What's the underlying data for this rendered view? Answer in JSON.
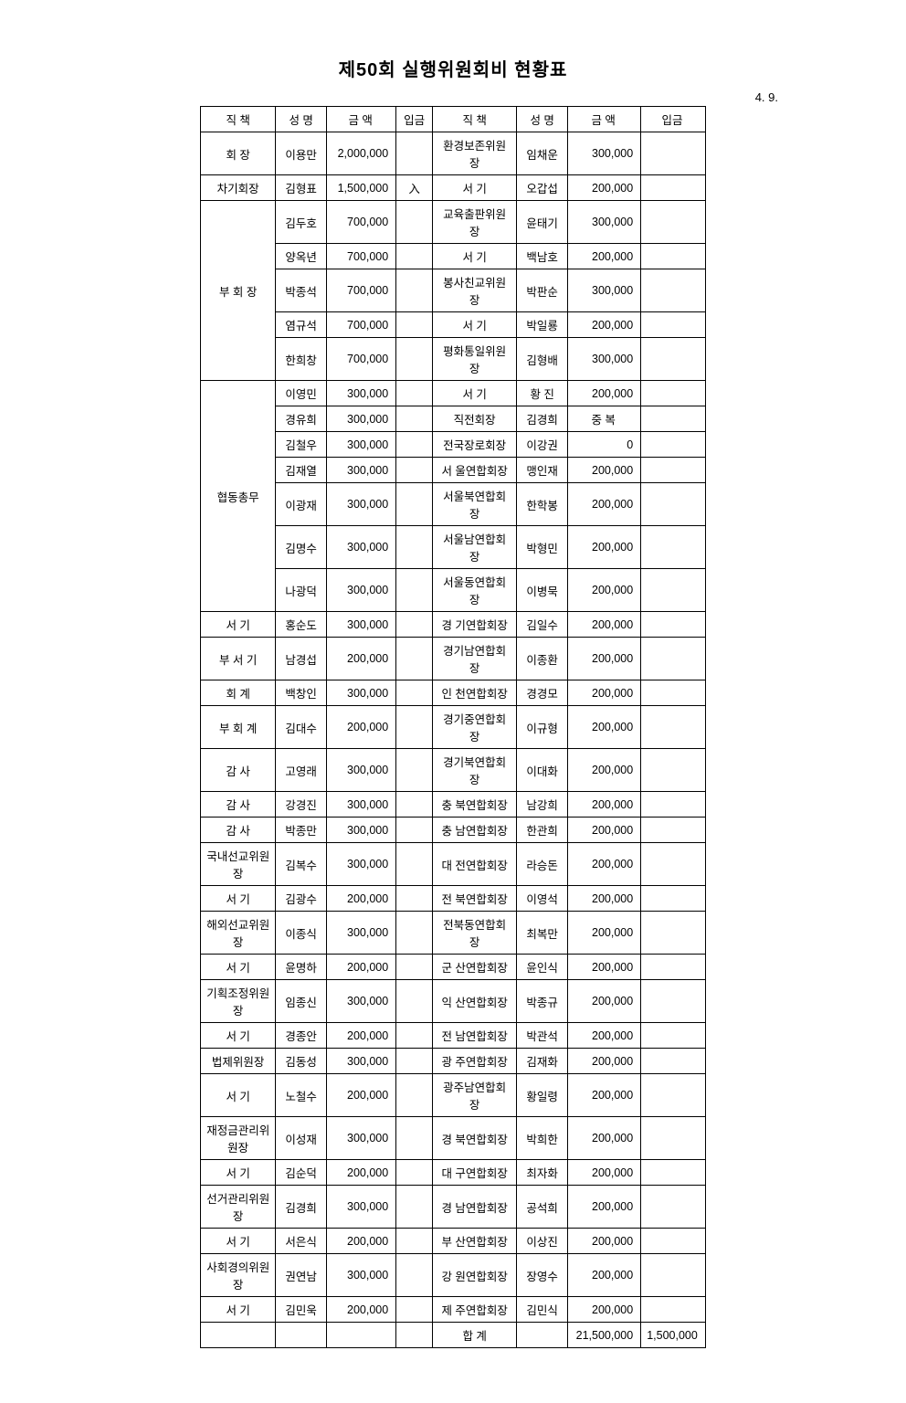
{
  "title": "제50회 실행위원회비 현황표",
  "date": "4.   9.",
  "headers": {
    "position": "직      책",
    "name": "성  명",
    "amount": "금      액",
    "deposit": "입금"
  },
  "left": [
    {
      "pos": "회    장",
      "rows": [
        {
          "name": "이용만",
          "amt": "2,000,000",
          "dep": ""
        }
      ]
    },
    {
      "pos": "차기회장",
      "rows": [
        {
          "name": "김형표",
          "amt": "1,500,000",
          "dep": "入"
        }
      ]
    },
    {
      "pos": "부 회 장",
      "rows": [
        {
          "name": "김두호",
          "amt": "700,000",
          "dep": ""
        },
        {
          "name": "양옥년",
          "amt": "700,000",
          "dep": ""
        },
        {
          "name": "박종석",
          "amt": "700,000",
          "dep": ""
        },
        {
          "name": "염규석",
          "amt": "700,000",
          "dep": ""
        },
        {
          "name": "한희창",
          "amt": "700,000",
          "dep": ""
        }
      ]
    },
    {
      "pos": "협동총무",
      "rows": [
        {
          "name": "이영민",
          "amt": "300,000",
          "dep": ""
        },
        {
          "name": "경유희",
          "amt": "300,000",
          "dep": ""
        },
        {
          "name": "김철우",
          "amt": "300,000",
          "dep": ""
        },
        {
          "name": "김재열",
          "amt": "300,000",
          "dep": ""
        },
        {
          "name": "이광재",
          "amt": "300,000",
          "dep": ""
        },
        {
          "name": "김명수",
          "amt": "300,000",
          "dep": ""
        },
        {
          "name": "나광덕",
          "amt": "300,000",
          "dep": ""
        }
      ]
    },
    {
      "pos": "서      기",
      "rows": [
        {
          "name": "홍순도",
          "amt": "300,000",
          "dep": ""
        }
      ]
    },
    {
      "pos": "부 서 기",
      "rows": [
        {
          "name": "남경섭",
          "amt": "200,000",
          "dep": ""
        }
      ]
    },
    {
      "pos": "회      계",
      "rows": [
        {
          "name": "백창인",
          "amt": "300,000",
          "dep": ""
        }
      ]
    },
    {
      "pos": "부 회 계",
      "rows": [
        {
          "name": "김대수",
          "amt": "200,000",
          "dep": ""
        }
      ]
    },
    {
      "pos": "감      사",
      "rows": [
        {
          "name": "고영래",
          "amt": "300,000",
          "dep": ""
        }
      ]
    },
    {
      "pos": "감      사",
      "rows": [
        {
          "name": "강경진",
          "amt": "300,000",
          "dep": ""
        }
      ]
    },
    {
      "pos": "감      사",
      "rows": [
        {
          "name": "박종만",
          "amt": "300,000",
          "dep": ""
        }
      ]
    },
    {
      "pos": "국내선교위원장",
      "rows": [
        {
          "name": "김복수",
          "amt": "300,000",
          "dep": ""
        }
      ]
    },
    {
      "pos": "서      기",
      "rows": [
        {
          "name": "김광수",
          "amt": "200,000",
          "dep": ""
        }
      ]
    },
    {
      "pos": "해외선교위원장",
      "rows": [
        {
          "name": "이종식",
          "amt": "300,000",
          "dep": ""
        }
      ]
    },
    {
      "pos": "서      기",
      "rows": [
        {
          "name": "윤명하",
          "amt": "200,000",
          "dep": ""
        }
      ]
    },
    {
      "pos": "기획조정위원장",
      "rows": [
        {
          "name": "임종신",
          "amt": "300,000",
          "dep": ""
        }
      ]
    },
    {
      "pos": "서      기",
      "rows": [
        {
          "name": "경종안",
          "amt": "200,000",
          "dep": ""
        }
      ]
    },
    {
      "pos": "법제위원장",
      "rows": [
        {
          "name": "김동성",
          "amt": "300,000",
          "dep": ""
        }
      ]
    },
    {
      "pos": "서      기",
      "rows": [
        {
          "name": "노철수",
          "amt": "200,000",
          "dep": ""
        }
      ]
    },
    {
      "pos": "재정금관리위원장",
      "rows": [
        {
          "name": "이성재",
          "amt": "300,000",
          "dep": ""
        }
      ]
    },
    {
      "pos": "서      기",
      "rows": [
        {
          "name": "김순덕",
          "amt": "200,000",
          "dep": ""
        }
      ]
    },
    {
      "pos": "선거관리위원장",
      "rows": [
        {
          "name": "김경희",
          "amt": "300,000",
          "dep": ""
        }
      ]
    },
    {
      "pos": "서      기",
      "rows": [
        {
          "name": "서은식",
          "amt": "200,000",
          "dep": ""
        }
      ]
    },
    {
      "pos": "사회경의위원장",
      "rows": [
        {
          "name": "권연남",
          "amt": "300,000",
          "dep": ""
        }
      ]
    },
    {
      "pos": "서      기",
      "rows": [
        {
          "name": "김민욱",
          "amt": "200,000",
          "dep": ""
        }
      ]
    },
    {
      "pos": "",
      "rows": [
        {
          "name": "",
          "amt": "",
          "dep": ""
        }
      ]
    }
  ],
  "right": [
    {
      "pos": "환경보존위원장",
      "name": "임채운",
      "amt": "300,000",
      "dep": ""
    },
    {
      "pos": "서      기",
      "name": "오갑섭",
      "amt": "200,000",
      "dep": ""
    },
    {
      "pos": "교육출판위원장",
      "name": "윤태기",
      "amt": "300,000",
      "dep": ""
    },
    {
      "pos": "서      기",
      "name": "백남호",
      "amt": "200,000",
      "dep": ""
    },
    {
      "pos": "봉사친교위원장",
      "name": "박판순",
      "amt": "300,000",
      "dep": ""
    },
    {
      "pos": "서      기",
      "name": "박일룡",
      "amt": "200,000",
      "dep": ""
    },
    {
      "pos": "평화통일위원장",
      "name": "김형배",
      "amt": "300,000",
      "dep": ""
    },
    {
      "pos": "서      기",
      "name": "황  진",
      "amt": "200,000",
      "dep": ""
    },
    {
      "pos": "직전회장",
      "name": "김경희",
      "amt": "중 복",
      "dep": ""
    },
    {
      "pos": "전국장로회장",
      "name": "이강권",
      "amt": "0",
      "dep": ""
    },
    {
      "pos": "서 울연합회장",
      "name": "맹인재",
      "amt": "200,000",
      "dep": ""
    },
    {
      "pos": "서울북연합회장",
      "name": "한학봉",
      "amt": "200,000",
      "dep": ""
    },
    {
      "pos": "서울남연합회장",
      "name": "박형민",
      "amt": "200,000",
      "dep": ""
    },
    {
      "pos": "서울동연합회장",
      "name": "이병묵",
      "amt": "200,000",
      "dep": ""
    },
    {
      "pos": "경 기연합회장",
      "name": "김일수",
      "amt": "200,000",
      "dep": ""
    },
    {
      "pos": "경기남연합회장",
      "name": "이종환",
      "amt": "200,000",
      "dep": ""
    },
    {
      "pos": "인 천연합회장",
      "name": "경경모",
      "amt": "200,000",
      "dep": ""
    },
    {
      "pos": "경기중연합회장",
      "name": "이규형",
      "amt": "200,000",
      "dep": ""
    },
    {
      "pos": "경기북연합회장",
      "name": "이대화",
      "amt": "200,000",
      "dep": ""
    },
    {
      "pos": "충 북연합회장",
      "name": "남강희",
      "amt": "200,000",
      "dep": ""
    },
    {
      "pos": "충 남연합회장",
      "name": "한관희",
      "amt": "200,000",
      "dep": ""
    },
    {
      "pos": "대 전연합회장",
      "name": "라승돈",
      "amt": "200,000",
      "dep": ""
    },
    {
      "pos": "전 북연합회장",
      "name": "이영석",
      "amt": "200,000",
      "dep": ""
    },
    {
      "pos": "전북동연합회장",
      "name": "최복만",
      "amt": "200,000",
      "dep": ""
    },
    {
      "pos": "군 산연합회장",
      "name": "윤인식",
      "amt": "200,000",
      "dep": ""
    },
    {
      "pos": "익 산연합회장",
      "name": "박종규",
      "amt": "200,000",
      "dep": ""
    },
    {
      "pos": "전 남연합회장",
      "name": "박관석",
      "amt": "200,000",
      "dep": ""
    },
    {
      "pos": "광 주연합회장",
      "name": "김재화",
      "amt": "200,000",
      "dep": ""
    },
    {
      "pos": "광주남연합회장",
      "name": "황일령",
      "amt": "200,000",
      "dep": ""
    },
    {
      "pos": "경 북연합회장",
      "name": "박희한",
      "amt": "200,000",
      "dep": ""
    },
    {
      "pos": "대 구연합회장",
      "name": "최자화",
      "amt": "200,000",
      "dep": ""
    },
    {
      "pos": "경 남연합회장",
      "name": "공석희",
      "amt": "200,000",
      "dep": ""
    },
    {
      "pos": "부 산연합회장",
      "name": "이상진",
      "amt": "200,000",
      "dep": ""
    },
    {
      "pos": "강 원연합회장",
      "name": "장영수",
      "amt": "200,000",
      "dep": ""
    },
    {
      "pos": "제 주연합회장",
      "name": "김민식",
      "amt": "200,000",
      "dep": ""
    },
    {
      "pos": "합      계",
      "name": "",
      "amt": "21,500,000",
      "dep": "1,500,000"
    }
  ]
}
